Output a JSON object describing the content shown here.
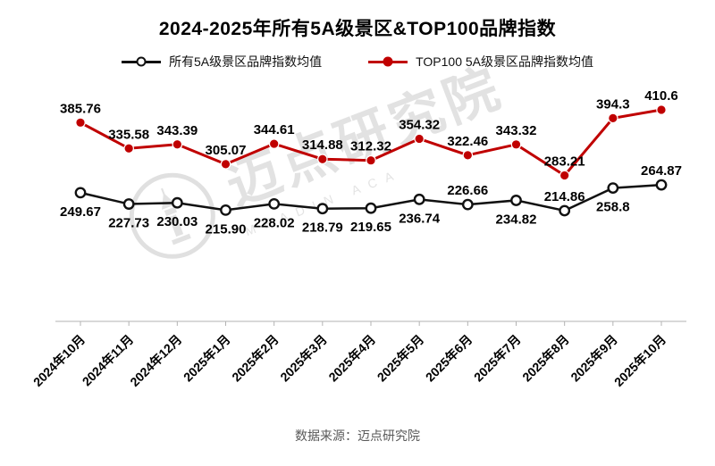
{
  "chart_data": {
    "type": "line",
    "title": "2024-2025年所有5A级景区&TOP100品牌指数",
    "categories": [
      "2024年10月",
      "2024年11月",
      "2024年12月",
      "2025年1月",
      "2025年2月",
      "2025年3月",
      "2025年4月",
      "2025年5月",
      "2025年6月",
      "2025年7月",
      "2025年8月",
      "2025年9月",
      "2025年10月"
    ],
    "series": [
      {
        "name": "所有5A级景区品牌指数均值",
        "color": "#111111",
        "marker": "open-circle",
        "values": [
          249.67,
          227.73,
          230.03,
          215.9,
          228.02,
          218.79,
          219.65,
          236.74,
          226.66,
          234.82,
          214.86,
          258.8,
          264.87
        ],
        "labels": [
          "249.67",
          "227.73",
          "230.03",
          "215.90",
          "228.02",
          "218.79",
          "219.65",
          "236.74",
          "226.66",
          "234.82",
          "214.86",
          "258.8",
          "264.87"
        ],
        "label_side": [
          "below",
          "below",
          "below",
          "below",
          "below",
          "below",
          "below",
          "below",
          "above",
          "below",
          "above",
          "below",
          "above"
        ]
      },
      {
        "name": "TOP100 5A级景区品牌指数均值",
        "color": "#c00000",
        "marker": "filled-circle",
        "values": [
          385.76,
          335.58,
          343.39,
          305.07,
          344.61,
          314.88,
          312.32,
          354.32,
          322.46,
          343.32,
          283.21,
          394.3,
          410.6
        ],
        "labels": [
          "385.76",
          "335.58",
          "343.39",
          "305.07",
          "344.61",
          "314.88",
          "312.32",
          "354.32",
          "322.46",
          "343.32",
          "283.21",
          "394.3",
          "410.6"
        ],
        "label_side": [
          "above",
          "above",
          "above",
          "above",
          "above",
          "above",
          "above",
          "above",
          "above",
          "above",
          "above",
          "above",
          "above"
        ]
      }
    ],
    "xlabel": "",
    "ylabel": "",
    "ylim": [
      0,
      440
    ],
    "grid": false,
    "legend_position": "top",
    "axis_color": "#b3b3b3",
    "data_label_color": "#000000"
  },
  "watermark": {
    "cn": "迈点研究院",
    "en": "MEADIN ACA"
  },
  "footer": {
    "source": "数据来源：迈点研究院"
  }
}
